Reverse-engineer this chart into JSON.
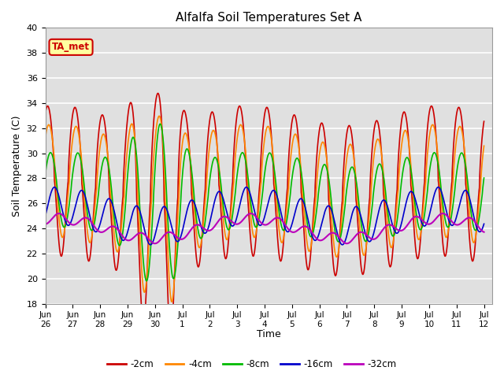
{
  "title": "Alfalfa Soil Temperatures Set A",
  "ylabel": "Soil Temperature (C)",
  "xlabel": "Time",
  "ylim": [
    18,
    40
  ],
  "bg_color": "#e0e0e0",
  "grid_color": "white",
  "ta_met_label": "TA_met",
  "ta_met_box_color": "#ffffa0",
  "ta_met_box_edge": "#cc0000",
  "lines": {
    "-2cm": {
      "color": "#cc0000",
      "lw": 1.2
    },
    "-4cm": {
      "color": "#ff8800",
      "lw": 1.2
    },
    "-8cm": {
      "color": "#00bb00",
      "lw": 1.2
    },
    "-16cm": {
      "color": "#0000cc",
      "lw": 1.2
    },
    "-32cm": {
      "color": "#bb00bb",
      "lw": 1.5
    }
  },
  "legend_order": [
    "-2cm",
    "-4cm",
    "-8cm",
    "-16cm",
    "-32cm"
  ],
  "xtick_labels": [
    "Jun\n26",
    "Jun\n27",
    "Jun\n28",
    "Jun\n29",
    "Jun\n30",
    "Jul\n1",
    "Jul\n2",
    "Jul\n3",
    "Jul\n4",
    "Jul\n5",
    "Jul\n6",
    "Jul\n7",
    "Jul\n8",
    "Jul\n9",
    "Jul\n10",
    "Jul\n11",
    "Jul\n12"
  ],
  "ytick_vals": [
    18,
    20,
    22,
    24,
    26,
    28,
    30,
    32,
    34,
    36,
    38,
    40
  ]
}
